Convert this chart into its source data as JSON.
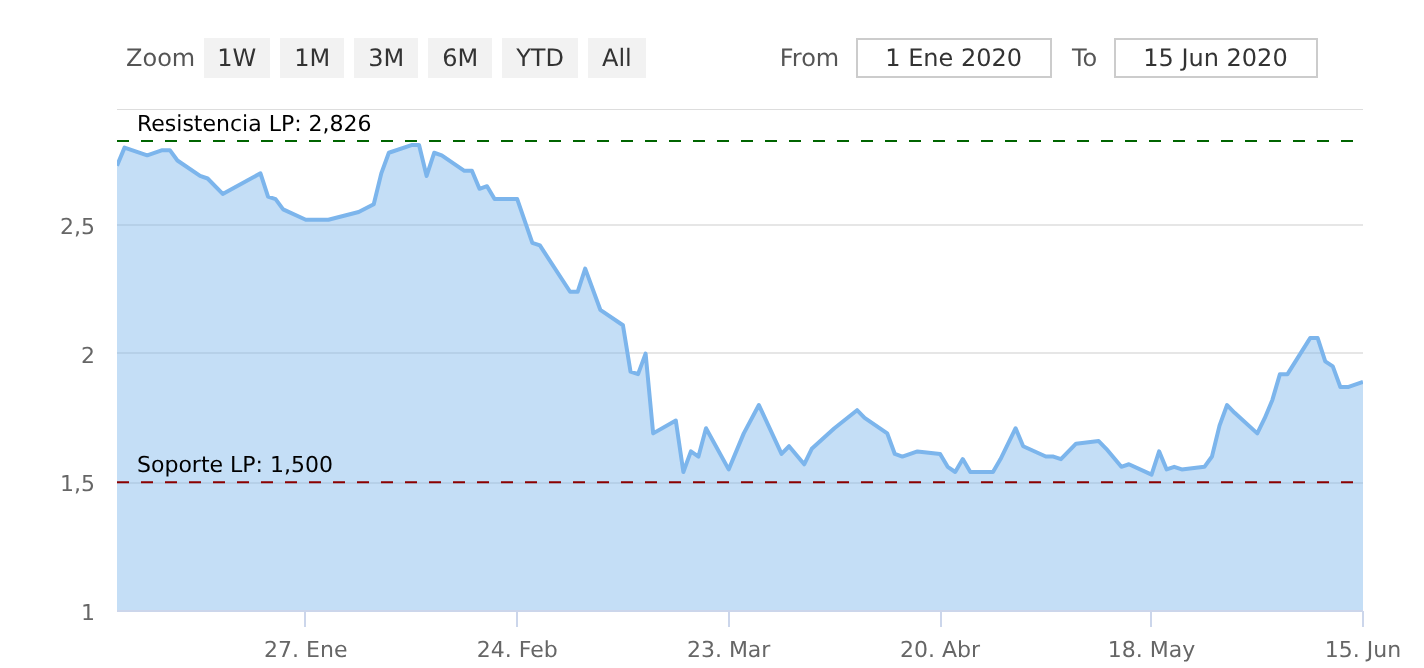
{
  "chart_data": {
    "type": "area",
    "annotations": [
      "Zoom",
      "1W",
      "1M",
      "3M",
      "6M",
      "YTD",
      "All",
      "From",
      "1 Ene 2020",
      "To",
      "15 Jun 2020"
    ],
    "x": [
      "2020-01-02",
      "2020-01-03",
      "2020-01-06",
      "2020-01-08",
      "2020-01-09",
      "2020-01-10",
      "2020-01-13",
      "2020-01-14",
      "2020-01-16",
      "2020-01-21",
      "2020-01-22",
      "2020-01-23",
      "2020-01-24",
      "2020-01-27",
      "2020-01-30",
      "2020-02-03",
      "2020-02-05",
      "2020-02-06",
      "2020-02-07",
      "2020-02-10",
      "2020-02-11",
      "2020-02-12",
      "2020-02-13",
      "2020-02-14",
      "2020-02-17",
      "2020-02-18",
      "2020-02-19",
      "2020-02-20",
      "2020-02-21",
      "2020-02-24",
      "2020-02-26",
      "2020-02-27",
      "2020-03-02",
      "2020-03-03",
      "2020-03-04",
      "2020-03-06",
      "2020-03-09",
      "2020-03-10",
      "2020-03-11",
      "2020-03-12",
      "2020-03-13",
      "2020-03-16",
      "2020-03-17",
      "2020-03-18",
      "2020-03-19",
      "2020-03-20",
      "2020-03-23",
      "2020-03-25",
      "2020-03-27",
      "2020-03-30",
      "2020-03-31",
      "2020-04-02",
      "2020-04-03",
      "2020-04-06",
      "2020-04-09",
      "2020-04-10",
      "2020-04-13",
      "2020-04-14",
      "2020-04-15",
      "2020-04-17",
      "2020-04-20",
      "2020-04-21",
      "2020-04-22",
      "2020-04-23",
      "2020-04-24",
      "2020-04-27",
      "2020-04-28",
      "2020-04-30",
      "2020-05-01",
      "2020-05-04",
      "2020-05-05",
      "2020-05-06",
      "2020-05-08",
      "2020-05-11",
      "2020-05-12",
      "2020-05-14",
      "2020-05-15",
      "2020-05-18",
      "2020-05-19",
      "2020-05-20",
      "2020-05-21",
      "2020-05-22",
      "2020-05-25",
      "2020-05-26",
      "2020-05-27",
      "2020-05-28",
      "2020-05-29",
      "2020-06-01",
      "2020-06-02",
      "2020-06-03",
      "2020-06-04",
      "2020-06-05",
      "2020-06-08",
      "2020-06-09",
      "2020-06-10",
      "2020-06-11",
      "2020-06-12",
      "2020-06-13",
      "2020-06-15"
    ],
    "series": [
      {
        "color": "#7cb5ec",
        "values": [
          2.73,
          2.8,
          2.77,
          2.79,
          2.79,
          2.75,
          2.69,
          2.68,
          2.62,
          2.7,
          2.61,
          2.6,
          2.56,
          2.52,
          2.52,
          2.55,
          2.58,
          2.7,
          2.78,
          2.81,
          2.81,
          2.69,
          2.78,
          2.77,
          2.71,
          2.71,
          2.64,
          2.65,
          2.6,
          2.6,
          2.43,
          2.42,
          2.24,
          2.24,
          2.33,
          2.17,
          2.11,
          1.93,
          1.92,
          2.0,
          1.69,
          1.74,
          1.54,
          1.62,
          1.6,
          1.71,
          1.55,
          1.69,
          1.8,
          1.61,
          1.64,
          1.57,
          1.63,
          1.71,
          1.78,
          1.75,
          1.69,
          1.61,
          1.6,
          1.62,
          1.61,
          1.56,
          1.54,
          1.59,
          1.54,
          1.54,
          1.59,
          1.71,
          1.64,
          1.6,
          1.6,
          1.59,
          1.65,
          1.66,
          1.63,
          1.56,
          1.57,
          1.53,
          1.62,
          1.55,
          1.56,
          1.55,
          1.56,
          1.6,
          1.72,
          1.8,
          1.77,
          1.69,
          1.75,
          1.82,
          1.92,
          1.92,
          2.06,
          2.06,
          1.97,
          1.95,
          1.87,
          1.87,
          1.89
        ]
      }
    ],
    "xlim": [
      "2020-01-02",
      "2020-06-15"
    ],
    "xticks": [
      {
        "value": "2020-01-27",
        "label": "27. Ene"
      },
      {
        "value": "2020-02-24",
        "label": "24. Feb"
      },
      {
        "value": "2020-03-23",
        "label": "23. Mar"
      },
      {
        "value": "2020-04-20",
        "label": "20. Abr"
      },
      {
        "value": "2020-05-18",
        "label": "18. May"
      },
      {
        "value": "2020-06-15",
        "label": "15. Jun"
      }
    ],
    "ylim": [
      1,
      2.95
    ],
    "yticks": [
      1,
      {
        "value": 1.5,
        "label": "1,5"
      },
      2,
      {
        "value": 2.5,
        "label": "2,5"
      }
    ],
    "ref_lines": [
      {
        "axis": "y",
        "value": 2.826,
        "label": "Resistencia LP: 2,826",
        "color": "#006400",
        "line_style": "dashed"
      },
      {
        "axis": "y",
        "value": 1.5,
        "label": "Soporte LP: 1,500",
        "color": "#8b0000",
        "line_style": "dashed"
      }
    ],
    "grid": "y",
    "marker": "none",
    "line_style": "solid"
  }
}
